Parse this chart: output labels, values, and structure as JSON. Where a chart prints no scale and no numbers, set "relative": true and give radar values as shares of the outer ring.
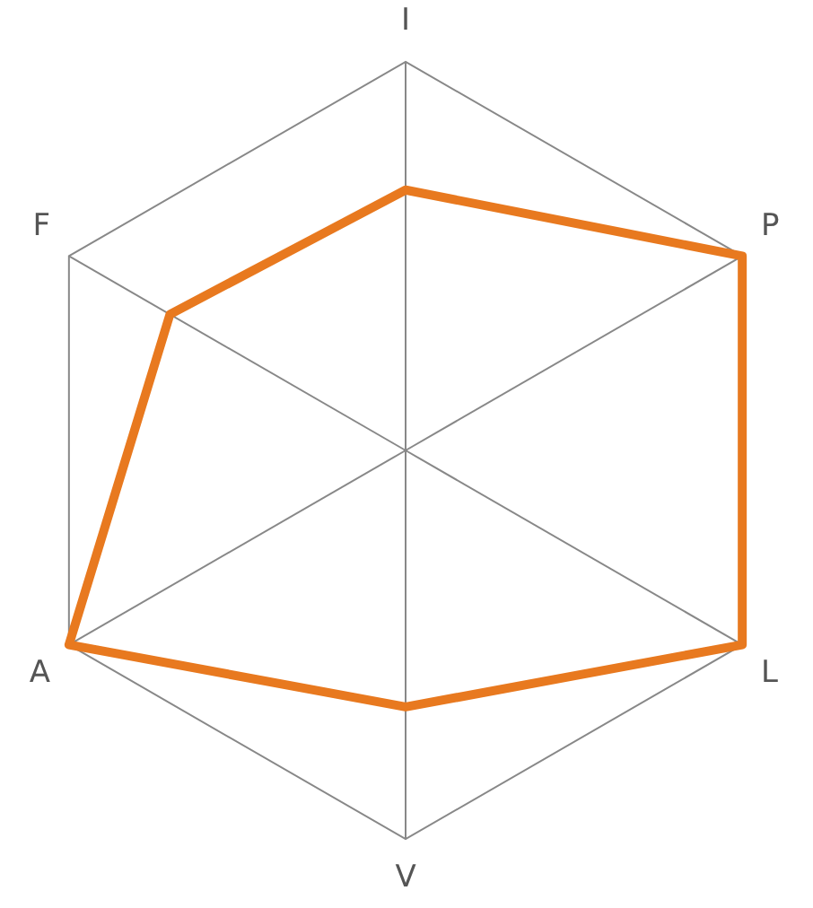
{
  "chart_data": {
    "type": "radar",
    "relative": true,
    "categories": [
      "I",
      "P",
      "L",
      "V",
      "A",
      "F"
    ],
    "series": [
      {
        "color": "#e8791f",
        "values": [
          0.67,
          1,
          1,
          0.66,
          1,
          0.7
        ]
      }
    ],
    "grid": true,
    "legend": false
  }
}
